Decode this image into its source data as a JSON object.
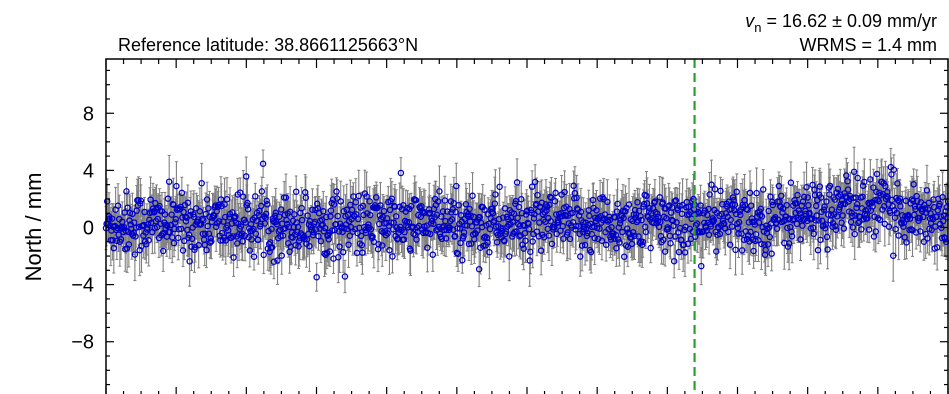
{
  "chart_data": {
    "type": "scatter",
    "subtitle_left": "Reference latitude: 38.8661125663°N",
    "velocity_symbol": "v",
    "velocity_subscript": "n",
    "velocity_value": " = 16.62 ± 0.09 mm/yr",
    "wrms_text": "WRMS = 1.4 mm",
    "ylabel": "North / mm",
    "ylim": [
      -11.8,
      11.8
    ],
    "yticks": [
      8,
      4,
      0,
      -4,
      -8
    ],
    "ytick_labels": [
      "8",
      "4",
      "0",
      "−4",
      "−8"
    ],
    "x_range": [
      0,
      1
    ],
    "vertical_marker_x": 0.699,
    "colors": {
      "marker_edge": "#0000cc",
      "error_bar": "#808080",
      "vline": "#2ca02c",
      "axes": "#000000"
    },
    "series": [
      {
        "approx_point_count": 1400,
        "segments": [
          {
            "x_start": 0.0,
            "x_end": 0.25,
            "mean_mm": 0.3
          },
          {
            "x_start": 0.25,
            "x_end": 0.55,
            "mean_mm": 0.2
          },
          {
            "x_start": 0.55,
            "x_end": 0.7,
            "mean_mm": 0.3
          },
          {
            "x_start": 0.7,
            "x_end": 0.85,
            "mean_mm": 0.5
          },
          {
            "x_start": 0.85,
            "x_end": 0.95,
            "mean_mm": 1.6
          },
          {
            "x_start": 0.95,
            "x_end": 1.0,
            "mean_mm": 0.8
          }
        ],
        "scatter_sd_mm": 1.1,
        "error_bar_half_mm": 1.2
      }
    ]
  }
}
